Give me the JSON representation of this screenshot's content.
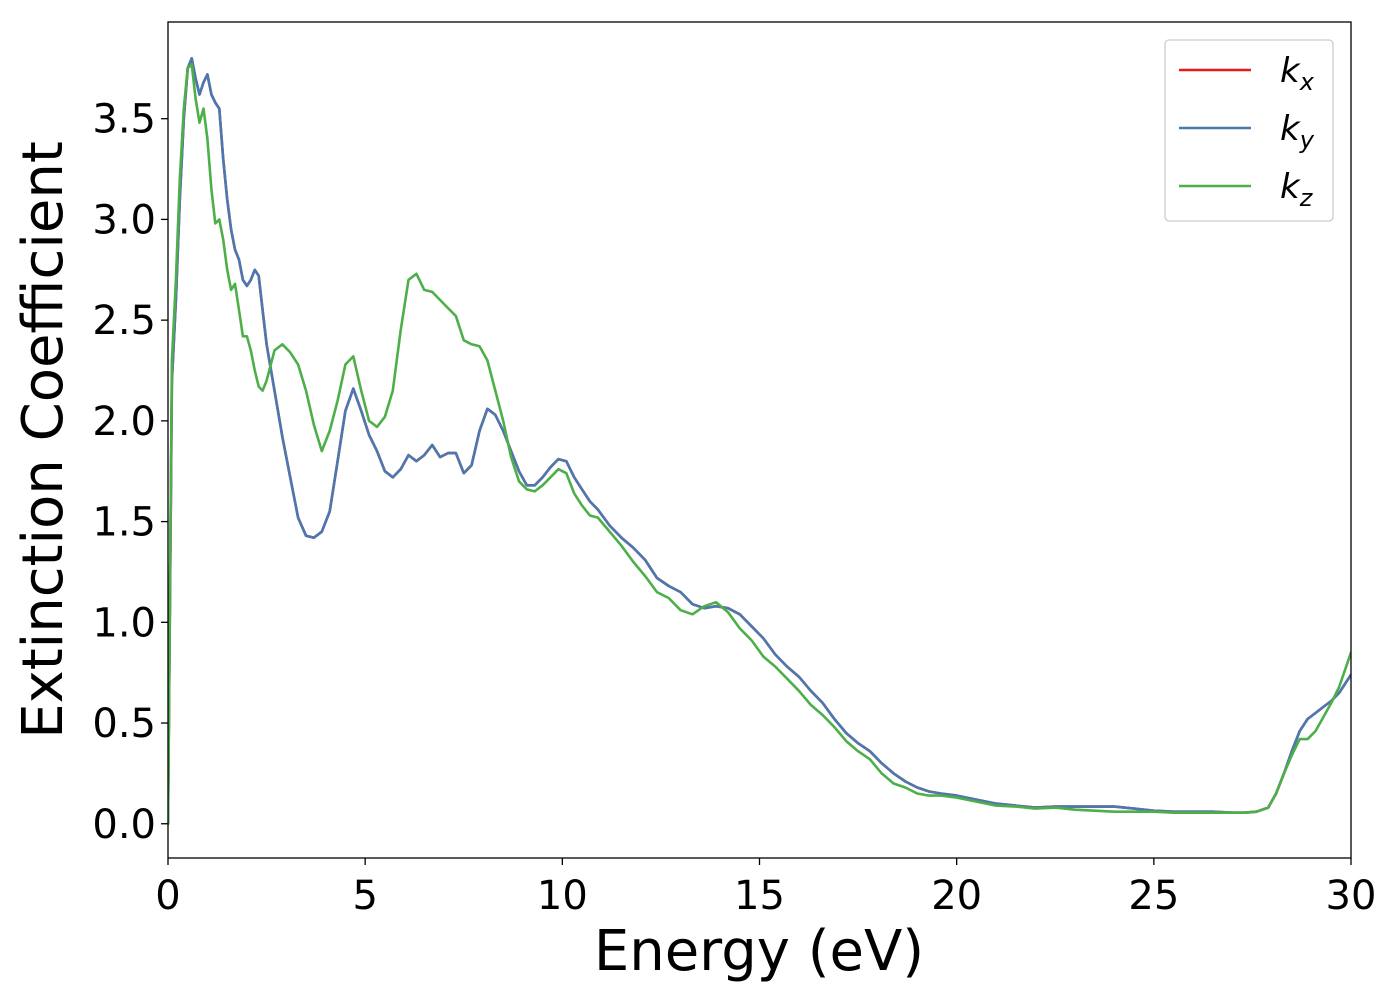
{
  "chart_data": {
    "type": "line",
    "xlabel": "Energy (eV)",
    "ylabel": "Extinction Coefficient",
    "xlim": [
      0,
      30
    ],
    "ylim": [
      -0.17,
      3.98
    ],
    "xticks": [
      0,
      5,
      10,
      15,
      20,
      25,
      30
    ],
    "xtick_labels": [
      "0",
      "5",
      "10",
      "15",
      "20",
      "25",
      "30"
    ],
    "yticks": [
      0.0,
      0.5,
      1.0,
      1.5,
      2.0,
      2.5,
      3.0,
      3.5
    ],
    "ytick_labels": [
      "0.0",
      "0.5",
      "1.0",
      "1.5",
      "2.0",
      "2.5",
      "3.0",
      "3.5"
    ],
    "grid": false,
    "legend_position": "top-right",
    "series": [
      {
        "name": "k",
        "subscript": "x",
        "color": "#e41a1c",
        "x": [
          0.0,
          0.1,
          0.2,
          0.3,
          0.4,
          0.5,
          0.6,
          0.7,
          0.8,
          0.9,
          1.0,
          1.1,
          1.2,
          1.3,
          1.4,
          1.5,
          1.6,
          1.7,
          1.8,
          1.9,
          2.0,
          2.1,
          2.2,
          2.3,
          2.4,
          2.5,
          2.7,
          2.9,
          3.1,
          3.3,
          3.5,
          3.7,
          3.9,
          4.1,
          4.3,
          4.5,
          4.7,
          4.9,
          5.1,
          5.3,
          5.5,
          5.7,
          5.9,
          6.1,
          6.3,
          6.5,
          6.7,
          6.9,
          7.1,
          7.3,
          7.5,
          7.7,
          7.9,
          8.1,
          8.3,
          8.5,
          8.7,
          8.9,
          9.1,
          9.3,
          9.5,
          9.7,
          9.9,
          10.1,
          10.3,
          10.5,
          10.7,
          10.9,
          11.2,
          11.5,
          11.8,
          12.1,
          12.4,
          12.7,
          13.0,
          13.3,
          13.6,
          13.9,
          14.2,
          14.5,
          14.8,
          15.1,
          15.4,
          15.7,
          16.0,
          16.3,
          16.6,
          16.9,
          17.2,
          17.5,
          17.8,
          18.1,
          18.4,
          18.7,
          19.0,
          19.3,
          19.6,
          20.0,
          20.5,
          21.0,
          21.5,
          22.0,
          22.5,
          23.0,
          23.5,
          24.0,
          24.5,
          25.0,
          25.5,
          26.0,
          26.5,
          27.0,
          27.3,
          27.6,
          27.9,
          28.1,
          28.3,
          28.5,
          28.7,
          28.9,
          29.1,
          29.3,
          29.5,
          29.7,
          30.0
        ],
        "y": [
          0.0,
          2.2,
          2.6,
          3.1,
          3.5,
          3.75,
          3.8,
          3.7,
          3.62,
          3.68,
          3.72,
          3.62,
          3.58,
          3.55,
          3.3,
          3.1,
          2.95,
          2.85,
          2.8,
          2.7,
          2.67,
          2.7,
          2.75,
          2.72,
          2.55,
          2.38,
          2.15,
          1.92,
          1.72,
          1.52,
          1.43,
          1.42,
          1.45,
          1.55,
          1.8,
          2.05,
          2.16,
          2.05,
          1.93,
          1.85,
          1.75,
          1.72,
          1.76,
          1.83,
          1.8,
          1.83,
          1.88,
          1.82,
          1.84,
          1.84,
          1.74,
          1.78,
          1.95,
          2.06,
          2.03,
          1.95,
          1.85,
          1.75,
          1.68,
          1.68,
          1.72,
          1.77,
          1.81,
          1.8,
          1.72,
          1.66,
          1.6,
          1.56,
          1.48,
          1.42,
          1.37,
          1.31,
          1.22,
          1.18,
          1.15,
          1.09,
          1.07,
          1.08,
          1.07,
          1.04,
          0.98,
          0.92,
          0.84,
          0.78,
          0.73,
          0.66,
          0.6,
          0.52,
          0.45,
          0.4,
          0.36,
          0.3,
          0.25,
          0.21,
          0.18,
          0.16,
          0.15,
          0.14,
          0.12,
          0.1,
          0.09,
          0.08,
          0.085,
          0.085,
          0.085,
          0.085,
          0.075,
          0.065,
          0.06,
          0.06,
          0.06,
          0.055,
          0.055,
          0.06,
          0.08,
          0.15,
          0.25,
          0.36,
          0.46,
          0.52,
          0.55,
          0.58,
          0.61,
          0.65,
          0.74
        ]
      },
      {
        "name": "k",
        "subscript": "y",
        "color": "#4a79b1",
        "x": [
          0.0,
          0.1,
          0.2,
          0.3,
          0.4,
          0.5,
          0.6,
          0.7,
          0.8,
          0.9,
          1.0,
          1.1,
          1.2,
          1.3,
          1.4,
          1.5,
          1.6,
          1.7,
          1.8,
          1.9,
          2.0,
          2.1,
          2.2,
          2.3,
          2.4,
          2.5,
          2.7,
          2.9,
          3.1,
          3.3,
          3.5,
          3.7,
          3.9,
          4.1,
          4.3,
          4.5,
          4.7,
          4.9,
          5.1,
          5.3,
          5.5,
          5.7,
          5.9,
          6.1,
          6.3,
          6.5,
          6.7,
          6.9,
          7.1,
          7.3,
          7.5,
          7.7,
          7.9,
          8.1,
          8.3,
          8.5,
          8.7,
          8.9,
          9.1,
          9.3,
          9.5,
          9.7,
          9.9,
          10.1,
          10.3,
          10.5,
          10.7,
          10.9,
          11.2,
          11.5,
          11.8,
          12.1,
          12.4,
          12.7,
          13.0,
          13.3,
          13.6,
          13.9,
          14.2,
          14.5,
          14.8,
          15.1,
          15.4,
          15.7,
          16.0,
          16.3,
          16.6,
          16.9,
          17.2,
          17.5,
          17.8,
          18.1,
          18.4,
          18.7,
          19.0,
          19.3,
          19.6,
          20.0,
          20.5,
          21.0,
          21.5,
          22.0,
          22.5,
          23.0,
          23.5,
          24.0,
          24.5,
          25.0,
          25.5,
          26.0,
          26.5,
          27.0,
          27.3,
          27.6,
          27.9,
          28.1,
          28.3,
          28.5,
          28.7,
          28.9,
          29.1,
          29.3,
          29.5,
          29.7,
          30.0
        ],
        "y": [
          0.0,
          2.2,
          2.6,
          3.1,
          3.5,
          3.75,
          3.8,
          3.7,
          3.62,
          3.68,
          3.72,
          3.62,
          3.58,
          3.55,
          3.3,
          3.1,
          2.95,
          2.85,
          2.8,
          2.7,
          2.67,
          2.7,
          2.75,
          2.72,
          2.55,
          2.38,
          2.15,
          1.92,
          1.72,
          1.52,
          1.43,
          1.42,
          1.45,
          1.55,
          1.8,
          2.05,
          2.16,
          2.05,
          1.93,
          1.85,
          1.75,
          1.72,
          1.76,
          1.83,
          1.8,
          1.83,
          1.88,
          1.82,
          1.84,
          1.84,
          1.74,
          1.78,
          1.95,
          2.06,
          2.03,
          1.95,
          1.85,
          1.75,
          1.68,
          1.68,
          1.72,
          1.77,
          1.81,
          1.8,
          1.72,
          1.66,
          1.6,
          1.56,
          1.48,
          1.42,
          1.37,
          1.31,
          1.22,
          1.18,
          1.15,
          1.09,
          1.07,
          1.08,
          1.07,
          1.04,
          0.98,
          0.92,
          0.84,
          0.78,
          0.73,
          0.66,
          0.6,
          0.52,
          0.45,
          0.4,
          0.36,
          0.3,
          0.25,
          0.21,
          0.18,
          0.16,
          0.15,
          0.14,
          0.12,
          0.1,
          0.09,
          0.08,
          0.085,
          0.085,
          0.085,
          0.085,
          0.075,
          0.065,
          0.06,
          0.06,
          0.06,
          0.055,
          0.055,
          0.06,
          0.08,
          0.15,
          0.25,
          0.36,
          0.46,
          0.52,
          0.55,
          0.58,
          0.61,
          0.65,
          0.74
        ]
      },
      {
        "name": "k",
        "subscript": "z",
        "color": "#4daf4a",
        "x": [
          0.0,
          0.1,
          0.2,
          0.3,
          0.4,
          0.5,
          0.6,
          0.7,
          0.8,
          0.9,
          1.0,
          1.1,
          1.2,
          1.3,
          1.4,
          1.5,
          1.6,
          1.7,
          1.8,
          1.9,
          2.0,
          2.1,
          2.2,
          2.3,
          2.4,
          2.5,
          2.7,
          2.9,
          3.1,
          3.3,
          3.5,
          3.7,
          3.9,
          4.1,
          4.3,
          4.5,
          4.7,
          4.9,
          5.1,
          5.3,
          5.5,
          5.7,
          5.9,
          6.1,
          6.3,
          6.5,
          6.7,
          6.9,
          7.1,
          7.3,
          7.5,
          7.7,
          7.9,
          8.1,
          8.3,
          8.5,
          8.7,
          8.9,
          9.1,
          9.3,
          9.5,
          9.7,
          9.9,
          10.1,
          10.3,
          10.5,
          10.7,
          10.9,
          11.2,
          11.5,
          11.8,
          12.1,
          12.4,
          12.7,
          13.0,
          13.3,
          13.6,
          13.9,
          14.2,
          14.5,
          14.8,
          15.1,
          15.4,
          15.7,
          16.0,
          16.3,
          16.6,
          16.9,
          17.2,
          17.5,
          17.8,
          18.1,
          18.4,
          18.7,
          19.0,
          19.3,
          19.6,
          20.0,
          20.5,
          21.0,
          21.5,
          22.0,
          22.5,
          23.0,
          23.5,
          24.0,
          24.5,
          25.0,
          25.5,
          26.0,
          26.5,
          27.0,
          27.3,
          27.6,
          27.9,
          28.1,
          28.3,
          28.5,
          28.7,
          28.9,
          29.1,
          29.3,
          29.5,
          29.7,
          30.0
        ],
        "y": [
          0.0,
          2.3,
          2.7,
          3.2,
          3.55,
          3.75,
          3.77,
          3.6,
          3.48,
          3.55,
          3.4,
          3.15,
          2.98,
          3.0,
          2.9,
          2.75,
          2.65,
          2.68,
          2.55,
          2.42,
          2.42,
          2.35,
          2.25,
          2.17,
          2.15,
          2.2,
          2.35,
          2.38,
          2.34,
          2.28,
          2.15,
          1.98,
          1.85,
          1.95,
          2.1,
          2.28,
          2.32,
          2.15,
          2.0,
          1.97,
          2.02,
          2.15,
          2.45,
          2.7,
          2.73,
          2.65,
          2.64,
          2.6,
          2.56,
          2.52,
          2.4,
          2.38,
          2.37,
          2.3,
          2.15,
          2.0,
          1.82,
          1.7,
          1.66,
          1.65,
          1.68,
          1.72,
          1.76,
          1.74,
          1.64,
          1.58,
          1.53,
          1.52,
          1.45,
          1.38,
          1.3,
          1.23,
          1.15,
          1.12,
          1.06,
          1.04,
          1.08,
          1.1,
          1.05,
          0.97,
          0.91,
          0.83,
          0.78,
          0.72,
          0.66,
          0.59,
          0.54,
          0.48,
          0.41,
          0.36,
          0.32,
          0.25,
          0.2,
          0.18,
          0.15,
          0.14,
          0.14,
          0.13,
          0.11,
          0.09,
          0.085,
          0.075,
          0.08,
          0.07,
          0.065,
          0.06,
          0.06,
          0.06,
          0.055,
          0.055,
          0.055,
          0.055,
          0.055,
          0.06,
          0.08,
          0.15,
          0.25,
          0.34,
          0.42,
          0.42,
          0.46,
          0.53,
          0.6,
          0.68,
          0.85
        ]
      }
    ]
  }
}
